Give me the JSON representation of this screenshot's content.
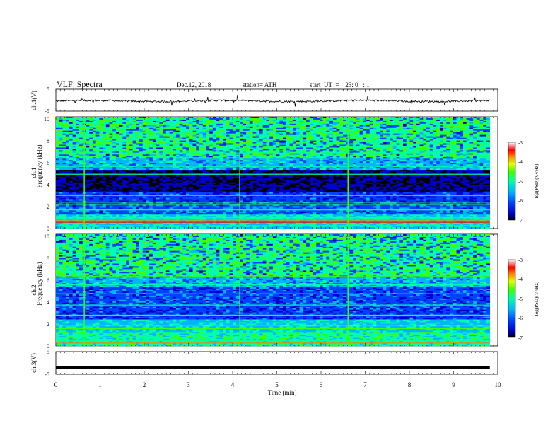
{
  "header": {
    "title": "VLF  Spectra",
    "date": "Dec.12, 2018",
    "station": "station= ATH",
    "start": "start  UT  =    23: 0   : 1"
  },
  "colors": {
    "colormap": [
      "#000000",
      "#0000c8",
      "#0040ff",
      "#00b4ff",
      "#00ffaa",
      "#40ff00",
      "#e0ff00",
      "#ff8000",
      "#ff0000",
      "#ff9a9a",
      "#ffffff"
    ],
    "wave": "#000000"
  },
  "chart_data": [
    {
      "type": "line",
      "name": "ch1-waveform",
      "ylabel": "ch.1(V)",
      "ylim": [
        -5,
        5
      ],
      "yticks": [
        "5",
        "-5"
      ],
      "xlim": [
        0,
        10
      ],
      "description_level": "trace near -0.5 V with sparse spikes"
    },
    {
      "type": "heatmap",
      "name": "ch1-spectrogram",
      "ylabel": "ch.1\nFrequency  (kHz)",
      "ylabel_line1": "ch.1",
      "ylabel_line2": "Frequency  (kHz)",
      "ylim": [
        0,
        10
      ],
      "yticks": [
        "10",
        "8",
        "6",
        "4",
        "2",
        "0"
      ],
      "xlim": [
        0,
        9.82
      ],
      "colorbar": {
        "label": "log(PSD)(V²/Hz)",
        "range": [
          -7,
          -3
        ],
        "ticks": [
          "-3",
          "-4",
          "-5",
          "-6",
          "-7"
        ]
      }
    },
    {
      "type": "heatmap",
      "name": "ch2-spectrogram",
      "ylabel_line1": "ch.2",
      "ylabel_line2": "Frequency  (kHz)",
      "ylim": [
        0,
        10
      ],
      "yticks": [
        "10",
        "8",
        "6",
        "4",
        "2",
        "0"
      ],
      "xlim": [
        0,
        9.82
      ],
      "colorbar": {
        "label": "log(PSD)(V²/Hz)",
        "range": [
          -7,
          -3
        ],
        "ticks": [
          "-3",
          "-4",
          "-5",
          "-6",
          "-7"
        ]
      }
    },
    {
      "type": "line",
      "name": "ch3-waveform",
      "ylabel": "ch.3(V)",
      "ylim": [
        -5,
        5
      ],
      "yticks": [
        "5",
        "-5"
      ],
      "level": -2,
      "xlim": [
        0,
        9.82
      ]
    }
  ],
  "xaxis": {
    "label": "Time  (min)",
    "ticks": [
      "0",
      "1",
      "2",
      "3",
      "4",
      "5",
      "6",
      "7",
      "8",
      "9",
      "10"
    ]
  }
}
